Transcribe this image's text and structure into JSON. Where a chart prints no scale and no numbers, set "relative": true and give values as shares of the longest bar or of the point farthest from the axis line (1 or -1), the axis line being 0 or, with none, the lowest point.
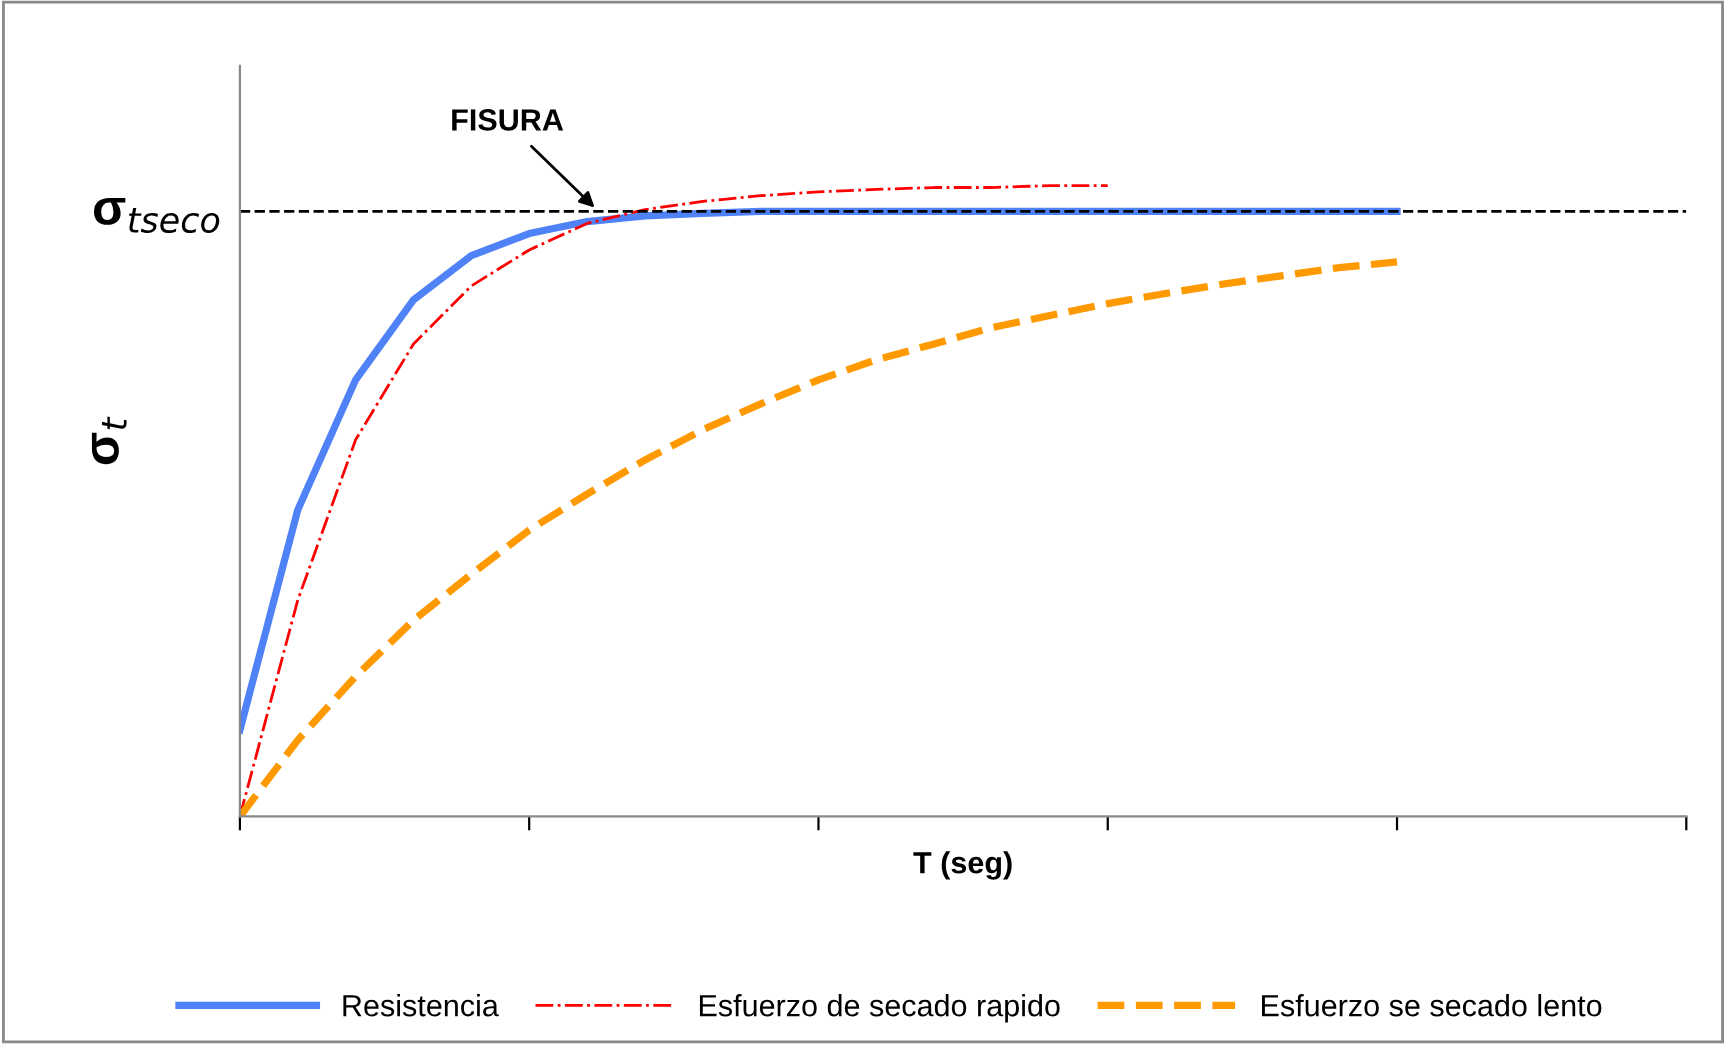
{
  "chart_data": {
    "type": "line",
    "relative": true,
    "xlabel": "T (seg)",
    "ylabel": "σ$_{t}$",
    "categories": [
      null,
      null,
      null,
      null,
      null,
      null,
      null,
      null,
      null,
      null,
      null,
      null,
      null,
      null,
      null,
      null,
      null,
      null,
      null,
      null,
      null,
      null,
      null,
      null,
      null,
      null
    ],
    "series": [
      {
        "name": "Resistencia",
        "color": "#4f81f7",
        "line_style": "solid",
        "values": [
          0.137,
          0.486,
          0.692,
          0.819,
          0.889,
          0.924,
          0.943,
          0.952,
          0.956,
          0.959,
          0.959,
          0.959,
          0.959,
          0.959,
          0.959,
          0.959,
          0.959,
          0.959,
          0.959,
          0.959,
          0.959,
          null,
          null,
          null,
          null,
          null
        ]
      },
      {
        "name": "Esfuerzo de secado rapido",
        "color": "#ff0000",
        "line_style": "dashdot",
        "values": [
          0,
          0.343,
          0.597,
          0.749,
          0.841,
          0.898,
          0.94,
          0.962,
          0.975,
          0.984,
          0.99,
          0.994,
          0.997,
          0.997,
          1,
          1,
          null,
          null,
          null,
          null,
          null,
          null,
          null,
          null,
          null,
          null
        ]
      },
      {
        "name": "Esfuerzo se secado lento",
        "color": "#ff9900",
        "line_style": "dashed",
        "values": [
          0,
          0.121,
          0.222,
          0.311,
          0.384,
          0.454,
          0.511,
          0.565,
          0.613,
          0.654,
          0.692,
          0.724,
          0.749,
          0.775,
          0.794,
          0.813,
          0.829,
          0.844,
          0.857,
          0.87,
          0.879,
          null,
          null,
          null,
          null,
          null
        ]
      }
    ],
    "ref_lines": [
      {
        "axis": "y",
        "value": 0.959,
        "label": "σ$_{tseco}$",
        "color": "#000000",
        "line_style": "dashed"
      }
    ],
    "annotations": [
      "FISURA"
    ],
    "legend": "bottom",
    "grid": false
  }
}
